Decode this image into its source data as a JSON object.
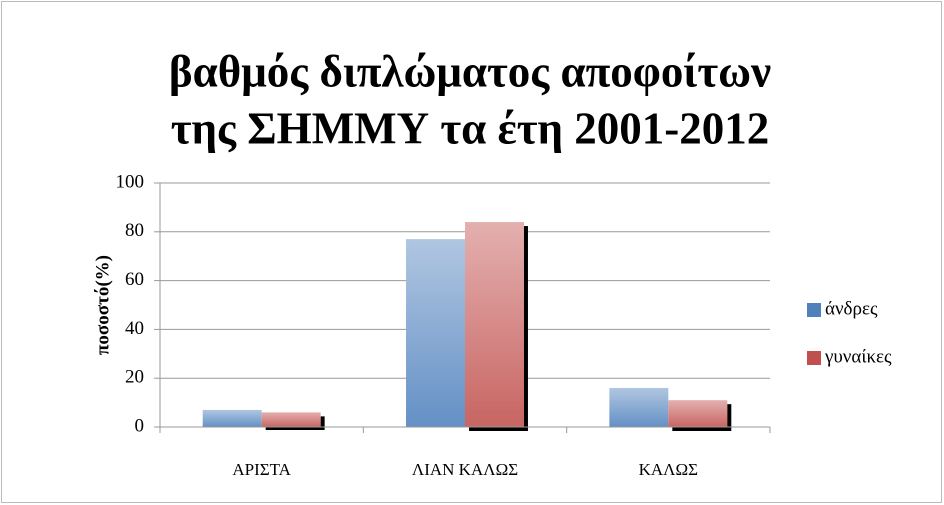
{
  "chart_data": {
    "type": "bar",
    "title": [
      "βαθμός διπλώματος αποφοίτων",
      "της ΣΗΜΜΥ τα έτη 2001-2012"
    ],
    "y_label": "ποσοστό(%)",
    "categories": [
      "ΑΡΙΣΤΑ",
      "ΛΙΑΝ ΚΑΛΩΣ",
      "ΚΑΛΩΣ"
    ],
    "series": [
      {
        "name": "άνδρες",
        "color": "#4f81bd",
        "values": [
          7,
          77,
          16
        ]
      },
      {
        "name": "γυναίκες",
        "color": "#c0504d",
        "values": [
          6,
          84,
          11
        ]
      }
    ],
    "ylim": [
      0,
      100
    ],
    "yticks": [
      0,
      20,
      40,
      60,
      80,
      100
    ],
    "grid": true,
    "legend": "right"
  }
}
